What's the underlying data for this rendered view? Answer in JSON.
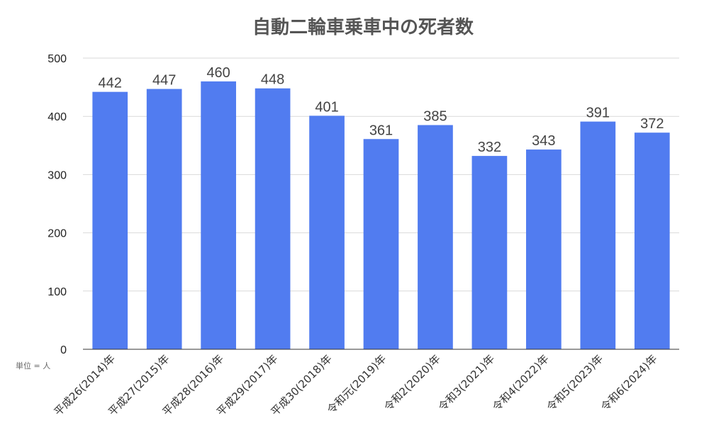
{
  "chart_data": {
    "type": "bar",
    "title": "自動二輪車乗車中の死者数",
    "unit_note": "単位 = 人",
    "categories": [
      "平成26(2014)年",
      "平成27(2015)年",
      "平成28(2016)年",
      "平成29(2017)年",
      "平成30(2018)年",
      "令和元(2019)年",
      "令和2(2020)年",
      "令和3(2021)年",
      "令和4(2022)年",
      "令和5(2023)年",
      "令和6(2024)年"
    ],
    "values": [
      442,
      447,
      460,
      448,
      401,
      361,
      385,
      332,
      343,
      391,
      372
    ],
    "ylim": [
      0,
      500
    ],
    "yticks": [
      0,
      100,
      200,
      300,
      400,
      500
    ],
    "grid": true,
    "bar_color": "#517cf0",
    "data_labels": true
  }
}
